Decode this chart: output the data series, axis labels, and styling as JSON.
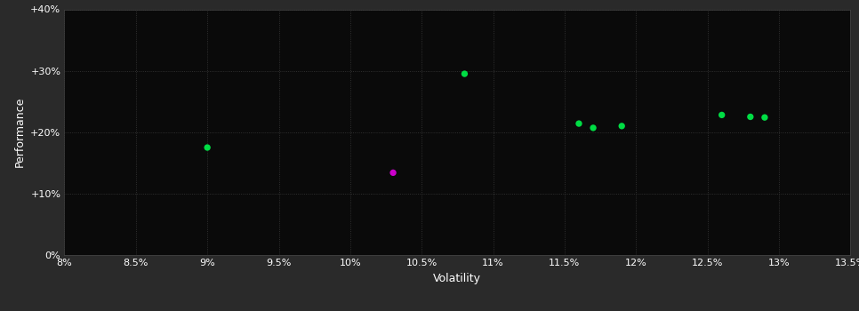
{
  "background_color": "#2a2a2a",
  "plot_bg_color": "#0a0a0a",
  "grid_color": "#3a3a3a",
  "grid_style": ":",
  "xlabel": "Volatility",
  "ylabel": "Performance",
  "xlim": [
    0.08,
    0.135
  ],
  "ylim": [
    0.0,
    0.4
  ],
  "xticks": [
    0.08,
    0.085,
    0.09,
    0.095,
    0.1,
    0.105,
    0.11,
    0.115,
    0.12,
    0.125,
    0.13,
    0.135
  ],
  "xtick_labels": [
    "8%",
    "8.5%",
    "9%",
    "9.5%",
    "10%",
    "10.5%",
    "11%",
    "11.5%",
    "12%",
    "12.5%",
    "13%",
    "13.5%"
  ],
  "yticks": [
    0.0,
    0.1,
    0.2,
    0.3,
    0.4
  ],
  "ytick_labels": [
    "0%",
    "+10%",
    "+20%",
    "+30%",
    "+40%"
  ],
  "green_points": [
    [
      0.09,
      0.175
    ],
    [
      0.108,
      0.295
    ],
    [
      0.116,
      0.214
    ],
    [
      0.117,
      0.207
    ],
    [
      0.119,
      0.21
    ],
    [
      0.126,
      0.228
    ],
    [
      0.128,
      0.225
    ],
    [
      0.129,
      0.224
    ]
  ],
  "magenta_points": [
    [
      0.103,
      0.134
    ]
  ],
  "green_color": "#00dd44",
  "magenta_color": "#cc00cc",
  "marker_size": 28,
  "tick_color": "#ffffff",
  "tick_fontsize": 8,
  "label_fontsize": 9,
  "label_color": "#ffffff",
  "spine_color": "#444444"
}
